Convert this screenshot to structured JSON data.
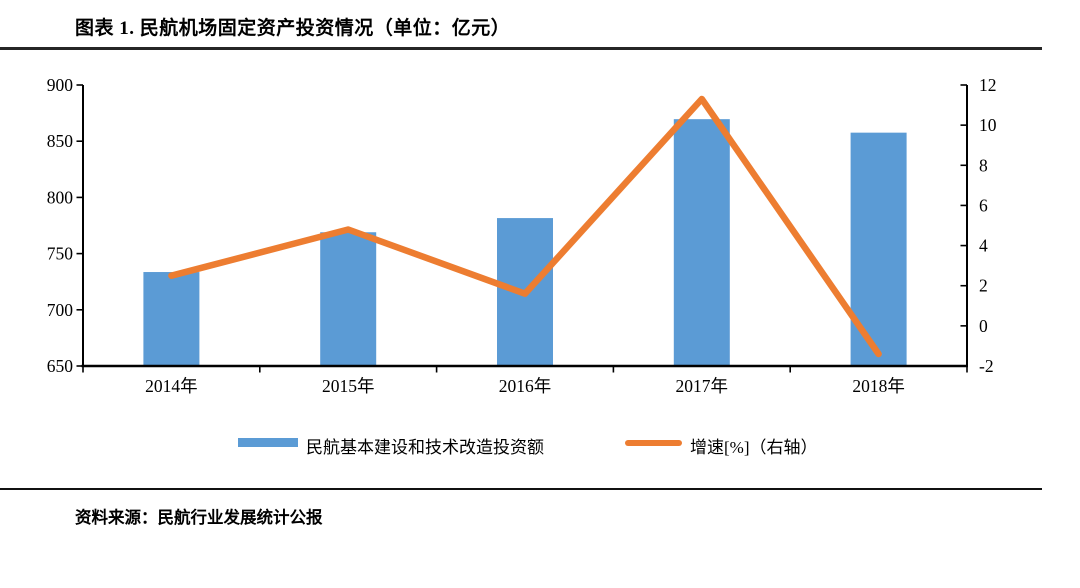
{
  "title": "图表 1. 民航机场固定资产投资情况（单位：亿元）",
  "source": "资料来源：民航行业发展统计公报",
  "colors": {
    "bar": "#5B9BD5",
    "line": "#ED7D31",
    "axis": "#000000",
    "text": "#000000",
    "rule": "#262626"
  },
  "legend": {
    "items": [
      {
        "swatch": "bar-swatch",
        "label": "民航基本建设和技术改造投资额"
      },
      {
        "swatch": "line-swatch",
        "label": "增速[%]（右轴）"
      }
    ]
  },
  "chart_data": {
    "type": "bar+line",
    "title": "图表 1. 民航机场固定资产投资情况（单位：亿元）",
    "categories": [
      "2014年",
      "2015年",
      "2016年",
      "2017年",
      "2018年"
    ],
    "series": [
      {
        "name": "民航基本建设和技术改造投资额",
        "type": "bar",
        "axis": "left",
        "values": [
          733.6,
          769.0,
          781.6,
          869.6,
          857.6
        ]
      },
      {
        "name": "增速[%]（右轴）",
        "type": "line",
        "axis": "right",
        "values": [
          2.5,
          4.8,
          1.6,
          11.3,
          -1.4
        ]
      }
    ],
    "left_axis": {
      "min": 650,
      "max": 900,
      "step": 50,
      "ticks": [
        650,
        700,
        750,
        800,
        850,
        900
      ]
    },
    "right_axis": {
      "min": -2,
      "max": 12,
      "step": 2,
      "ticks": [
        -2,
        0,
        2,
        4,
        6,
        8,
        10,
        12
      ]
    },
    "grid": false,
    "legend_position": "bottom"
  }
}
